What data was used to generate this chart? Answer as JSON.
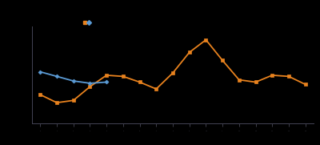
{
  "orange_x": [
    0,
    1,
    2,
    3,
    4,
    5,
    6,
    7,
    8,
    9,
    10,
    11,
    12,
    13,
    14,
    15,
    16
  ],
  "orange_y": [
    55,
    48,
    50,
    62,
    72,
    71,
    66,
    60,
    74,
    92,
    103,
    85,
    68,
    66,
    72,
    71,
    64
  ],
  "blue_x": [
    0,
    1,
    2,
    3,
    4
  ],
  "blue_y": [
    75,
    71,
    67,
    65,
    66
  ],
  "orange_color": "#E8821E",
  "blue_color": "#5B9BD5",
  "bg_color": "#000000",
  "spine_color": "#444455",
  "tick_color": "#555566",
  "figsize": [
    4.0,
    1.81
  ],
  "dpi": 100
}
